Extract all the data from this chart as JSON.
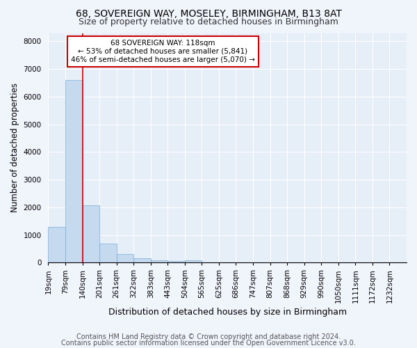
{
  "title1": "68, SOVEREIGN WAY, MOSELEY, BIRMINGHAM, B13 8AT",
  "title2": "Size of property relative to detached houses in Birmingham",
  "xlabel": "Distribution of detached houses by size in Birmingham",
  "ylabel": "Number of detached properties",
  "footer1": "Contains HM Land Registry data © Crown copyright and database right 2024.",
  "footer2": "Contains public sector information licensed under the Open Government Licence v3.0.",
  "bin_labels": [
    "19sqm",
    "79sqm",
    "140sqm",
    "201sqm",
    "261sqm",
    "322sqm",
    "383sqm",
    "443sqm",
    "504sqm",
    "565sqm",
    "625sqm",
    "686sqm",
    "747sqm",
    "807sqm",
    "868sqm",
    "929sqm",
    "990sqm",
    "1050sqm",
    "1111sqm",
    "1172sqm",
    "1232sqm"
  ],
  "bar_values": [
    1300,
    6600,
    2080,
    680,
    300,
    150,
    80,
    50,
    90,
    0,
    0,
    0,
    0,
    0,
    0,
    0,
    0,
    0,
    0,
    0,
    0
  ],
  "bar_color": "#c5d9ef",
  "bar_edge_color": "#7aaed6",
  "property_line_x": 2,
  "annotation_text": "68 SOVEREIGN WAY: 118sqm\n← 53% of detached houses are smaller (5,841)\n46% of semi-detached houses are larger (5,070) →",
  "annotation_box_color": "#ffffff",
  "annotation_box_edge": "#cc0000",
  "line_color": "#cc0000",
  "ylim": [
    0,
    8300
  ],
  "yticks": [
    0,
    1000,
    2000,
    3000,
    4000,
    5000,
    6000,
    7000,
    8000
  ],
  "bg_color": "#f0f4fb",
  "plot_bg_color": "#e6eef8",
  "grid_color": "#ffffff",
  "title1_fontsize": 10,
  "title2_fontsize": 9,
  "xlabel_fontsize": 9,
  "ylabel_fontsize": 8.5,
  "tick_fontsize": 7.5,
  "annotation_fontsize": 7.5,
  "footer_fontsize": 7
}
